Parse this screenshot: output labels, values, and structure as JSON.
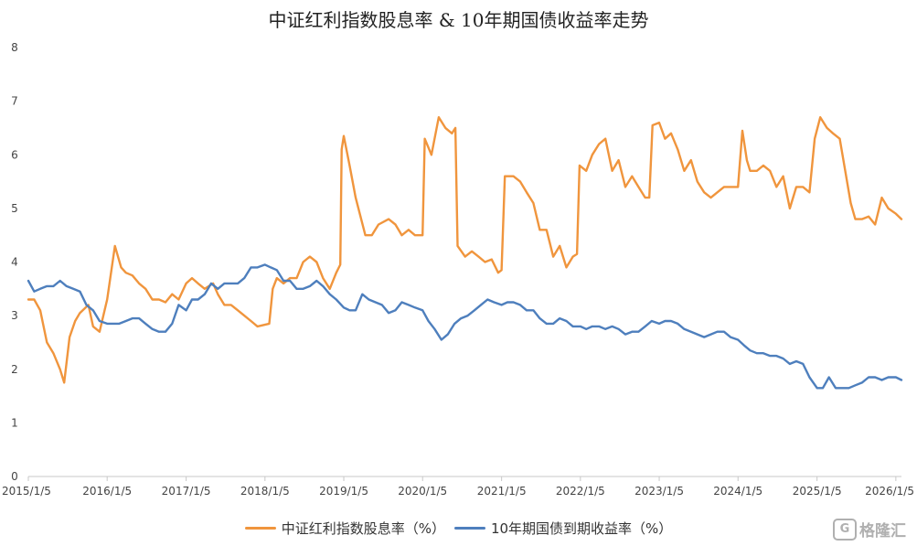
{
  "chart_data": {
    "type": "line",
    "title": "中证红利指数股息率 & 10年期国债收益率走势",
    "xlabel": "",
    "ylabel": "",
    "ylim": [
      0,
      8
    ],
    "yticks": [
      0,
      1,
      2,
      3,
      4,
      5,
      6,
      7,
      8
    ],
    "xlim": [
      "2015-01-05",
      "2026-01-31"
    ],
    "xticks": [
      "2015/1/5",
      "2016/1/5",
      "2017/1/5",
      "2018/1/5",
      "2019/1/5",
      "2020/1/5",
      "2021/1/5",
      "2022/1/5",
      "2023/1/5",
      "2024/1/5",
      "2025/1/5",
      "2026/1/5"
    ],
    "grid": false,
    "legend_position": "bottom",
    "series": [
      {
        "name": "中证红利指数股息率（%）",
        "color": "#f0953d",
        "points": [
          [
            "2015-01-05",
            3.3
          ],
          [
            "2015-02-01",
            3.3
          ],
          [
            "2015-03-01",
            3.1
          ],
          [
            "2015-04-01",
            2.5
          ],
          [
            "2015-05-01",
            2.3
          ],
          [
            "2015-06-01",
            2.0
          ],
          [
            "2015-06-20",
            1.75
          ],
          [
            "2015-07-15",
            2.6
          ],
          [
            "2015-08-10",
            2.9
          ],
          [
            "2015-09-01",
            3.05
          ],
          [
            "2015-10-10",
            3.2
          ],
          [
            "2015-11-01",
            2.8
          ],
          [
            "2015-12-01",
            2.7
          ],
          [
            "2016-01-05",
            3.3
          ],
          [
            "2016-02-10",
            4.3
          ],
          [
            "2016-03-10",
            3.9
          ],
          [
            "2016-04-01",
            3.8
          ],
          [
            "2016-05-01",
            3.75
          ],
          [
            "2016-06-01",
            3.6
          ],
          [
            "2016-07-01",
            3.5
          ],
          [
            "2016-08-01",
            3.3
          ],
          [
            "2016-09-01",
            3.3
          ],
          [
            "2016-10-01",
            3.25
          ],
          [
            "2016-11-01",
            3.4
          ],
          [
            "2016-12-01",
            3.3
          ],
          [
            "2017-01-05",
            3.6
          ],
          [
            "2017-02-01",
            3.7
          ],
          [
            "2017-03-01",
            3.6
          ],
          [
            "2017-04-01",
            3.5
          ],
          [
            "2017-05-10",
            3.6
          ],
          [
            "2017-06-01",
            3.4
          ],
          [
            "2017-07-01",
            3.2
          ],
          [
            "2017-08-01",
            3.2
          ],
          [
            "2017-09-01",
            3.1
          ],
          [
            "2017-10-01",
            3.0
          ],
          [
            "2017-11-01",
            2.9
          ],
          [
            "2017-12-01",
            2.8
          ],
          [
            "2018-01-25",
            2.85
          ],
          [
            "2018-02-10",
            3.5
          ],
          [
            "2018-03-01",
            3.7
          ],
          [
            "2018-04-01",
            3.6
          ],
          [
            "2018-05-01",
            3.7
          ],
          [
            "2018-06-01",
            3.7
          ],
          [
            "2018-07-01",
            4.0
          ],
          [
            "2018-08-01",
            4.1
          ],
          [
            "2018-09-01",
            4.0
          ],
          [
            "2018-10-01",
            3.7
          ],
          [
            "2018-11-01",
            3.5
          ],
          [
            "2018-12-01",
            3.8
          ],
          [
            "2018-12-20",
            3.95
          ],
          [
            "2018-12-26",
            6.1
          ],
          [
            "2019-01-05",
            6.35
          ],
          [
            "2019-02-01",
            5.8
          ],
          [
            "2019-03-01",
            5.2
          ],
          [
            "2019-04-15",
            4.5
          ],
          [
            "2019-05-15",
            4.5
          ],
          [
            "2019-06-15",
            4.7
          ],
          [
            "2019-08-01",
            4.8
          ],
          [
            "2019-09-01",
            4.7
          ],
          [
            "2019-10-01",
            4.5
          ],
          [
            "2019-11-01",
            4.6
          ],
          [
            "2019-12-01",
            4.5
          ],
          [
            "2020-01-05",
            4.5
          ],
          [
            "2020-01-15",
            6.3
          ],
          [
            "2020-02-15",
            6.0
          ],
          [
            "2020-03-20",
            6.7
          ],
          [
            "2020-04-20",
            6.5
          ],
          [
            "2020-05-20",
            6.4
          ],
          [
            "2020-06-05",
            6.5
          ],
          [
            "2020-06-15",
            4.3
          ],
          [
            "2020-07-20",
            4.1
          ],
          [
            "2020-08-20",
            4.2
          ],
          [
            "2020-09-20",
            4.1
          ],
          [
            "2020-10-20",
            4.0
          ],
          [
            "2020-11-20",
            4.05
          ],
          [
            "2020-12-20",
            3.8
          ],
          [
            "2021-01-05",
            3.85
          ],
          [
            "2021-01-20",
            5.6
          ],
          [
            "2021-03-01",
            5.6
          ],
          [
            "2021-04-01",
            5.5
          ],
          [
            "2021-05-01",
            5.3
          ],
          [
            "2021-06-01",
            5.1
          ],
          [
            "2021-07-01",
            4.6
          ],
          [
            "2021-08-01",
            4.6
          ],
          [
            "2021-09-01",
            4.1
          ],
          [
            "2021-10-01",
            4.3
          ],
          [
            "2021-11-01",
            3.9
          ],
          [
            "2021-12-01",
            4.1
          ],
          [
            "2021-12-20",
            4.15
          ],
          [
            "2022-01-01",
            5.8
          ],
          [
            "2022-02-01",
            5.7
          ],
          [
            "2022-03-01",
            6.0
          ],
          [
            "2022-04-01",
            6.2
          ],
          [
            "2022-05-01",
            6.3
          ],
          [
            "2022-06-01",
            5.7
          ],
          [
            "2022-07-01",
            5.9
          ],
          [
            "2022-08-01",
            5.4
          ],
          [
            "2022-09-01",
            5.6
          ],
          [
            "2022-10-01",
            5.4
          ],
          [
            "2022-11-01",
            5.2
          ],
          [
            "2022-11-20",
            5.2
          ],
          [
            "2022-12-05",
            6.55
          ],
          [
            "2023-01-05",
            6.6
          ],
          [
            "2023-02-01",
            6.3
          ],
          [
            "2023-03-01",
            6.4
          ],
          [
            "2023-04-01",
            6.1
          ],
          [
            "2023-05-01",
            5.7
          ],
          [
            "2023-06-01",
            5.9
          ],
          [
            "2023-07-01",
            5.5
          ],
          [
            "2023-08-01",
            5.3
          ],
          [
            "2023-09-01",
            5.2
          ],
          [
            "2023-10-01",
            5.3
          ],
          [
            "2023-11-01",
            5.4
          ],
          [
            "2023-12-01",
            5.4
          ],
          [
            "2024-01-05",
            5.4
          ],
          [
            "2024-01-25",
            6.45
          ],
          [
            "2024-02-15",
            5.9
          ],
          [
            "2024-03-01",
            5.7
          ],
          [
            "2024-04-01",
            5.7
          ],
          [
            "2024-05-01",
            5.8
          ],
          [
            "2024-06-01",
            5.7
          ],
          [
            "2024-07-01",
            5.4
          ],
          [
            "2024-08-01",
            5.6
          ],
          [
            "2024-09-01",
            5.0
          ],
          [
            "2024-10-01",
            5.4
          ],
          [
            "2024-11-01",
            5.4
          ],
          [
            "2024-12-01",
            5.3
          ],
          [
            "2024-12-25",
            6.3
          ],
          [
            "2025-01-20",
            6.7
          ],
          [
            "2025-02-20",
            6.5
          ],
          [
            "2025-03-20",
            6.4
          ],
          [
            "2025-04-20",
            6.3
          ],
          [
            "2025-05-20",
            5.6
          ],
          [
            "2025-06-10",
            5.1
          ],
          [
            "2025-07-01",
            4.8
          ],
          [
            "2025-08-01",
            4.8
          ],
          [
            "2025-09-01",
            4.85
          ],
          [
            "2025-10-01",
            4.7
          ],
          [
            "2025-11-01",
            5.2
          ],
          [
            "2025-12-01",
            5.0
          ],
          [
            "2026-01-05",
            4.9
          ],
          [
            "2026-01-31",
            4.8
          ]
        ]
      },
      {
        "name": "10年期国债到期收益率（%）",
        "color": "#4e7fbd",
        "points": [
          [
            "2015-01-05",
            3.65
          ],
          [
            "2015-02-01",
            3.45
          ],
          [
            "2015-03-01",
            3.5
          ],
          [
            "2015-04-01",
            3.55
          ],
          [
            "2015-05-01",
            3.55
          ],
          [
            "2015-06-01",
            3.65
          ],
          [
            "2015-07-01",
            3.55
          ],
          [
            "2015-08-01",
            3.5
          ],
          [
            "2015-09-01",
            3.45
          ],
          [
            "2015-10-01",
            3.2
          ],
          [
            "2015-11-01",
            3.1
          ],
          [
            "2015-12-01",
            2.9
          ],
          [
            "2016-01-05",
            2.85
          ],
          [
            "2016-02-01",
            2.85
          ],
          [
            "2016-03-01",
            2.85
          ],
          [
            "2016-04-01",
            2.9
          ],
          [
            "2016-05-01",
            2.95
          ],
          [
            "2016-06-01",
            2.95
          ],
          [
            "2016-07-01",
            2.85
          ],
          [
            "2016-08-01",
            2.75
          ],
          [
            "2016-09-01",
            2.7
          ],
          [
            "2016-10-01",
            2.7
          ],
          [
            "2016-11-01",
            2.85
          ],
          [
            "2016-12-01",
            3.2
          ],
          [
            "2017-01-05",
            3.1
          ],
          [
            "2017-02-01",
            3.3
          ],
          [
            "2017-03-01",
            3.3
          ],
          [
            "2017-04-01",
            3.4
          ],
          [
            "2017-05-01",
            3.6
          ],
          [
            "2017-06-01",
            3.5
          ],
          [
            "2017-07-01",
            3.6
          ],
          [
            "2017-08-01",
            3.6
          ],
          [
            "2017-09-01",
            3.6
          ],
          [
            "2017-10-01",
            3.7
          ],
          [
            "2017-11-01",
            3.9
          ],
          [
            "2017-12-01",
            3.9
          ],
          [
            "2018-01-05",
            3.95
          ],
          [
            "2018-02-01",
            3.9
          ],
          [
            "2018-03-01",
            3.85
          ],
          [
            "2018-04-01",
            3.65
          ],
          [
            "2018-05-01",
            3.65
          ],
          [
            "2018-06-01",
            3.5
          ],
          [
            "2018-07-01",
            3.5
          ],
          [
            "2018-08-01",
            3.55
          ],
          [
            "2018-09-01",
            3.65
          ],
          [
            "2018-10-01",
            3.55
          ],
          [
            "2018-11-01",
            3.4
          ],
          [
            "2018-12-01",
            3.3
          ],
          [
            "2019-01-05",
            3.15
          ],
          [
            "2019-02-01",
            3.1
          ],
          [
            "2019-03-01",
            3.1
          ],
          [
            "2019-04-01",
            3.4
          ],
          [
            "2019-05-01",
            3.3
          ],
          [
            "2019-06-01",
            3.25
          ],
          [
            "2019-07-01",
            3.2
          ],
          [
            "2019-08-01",
            3.05
          ],
          [
            "2019-09-01",
            3.1
          ],
          [
            "2019-10-01",
            3.25
          ],
          [
            "2019-11-01",
            3.2
          ],
          [
            "2019-12-01",
            3.15
          ],
          [
            "2020-01-05",
            3.1
          ],
          [
            "2020-02-01",
            2.9
          ],
          [
            "2020-03-01",
            2.75
          ],
          [
            "2020-04-01",
            2.55
          ],
          [
            "2020-05-01",
            2.65
          ],
          [
            "2020-06-01",
            2.85
          ],
          [
            "2020-07-01",
            2.95
          ],
          [
            "2020-08-01",
            3.0
          ],
          [
            "2020-09-01",
            3.1
          ],
          [
            "2020-10-01",
            3.2
          ],
          [
            "2020-11-01",
            3.3
          ],
          [
            "2020-12-01",
            3.25
          ],
          [
            "2021-01-05",
            3.2
          ],
          [
            "2021-02-01",
            3.25
          ],
          [
            "2021-03-01",
            3.25
          ],
          [
            "2021-04-01",
            3.2
          ],
          [
            "2021-05-01",
            3.1
          ],
          [
            "2021-06-01",
            3.1
          ],
          [
            "2021-07-01",
            2.95
          ],
          [
            "2021-08-01",
            2.85
          ],
          [
            "2021-09-01",
            2.85
          ],
          [
            "2021-10-01",
            2.95
          ],
          [
            "2021-11-01",
            2.9
          ],
          [
            "2021-12-01",
            2.8
          ],
          [
            "2022-01-05",
            2.8
          ],
          [
            "2022-02-01",
            2.75
          ],
          [
            "2022-03-01",
            2.8
          ],
          [
            "2022-04-01",
            2.8
          ],
          [
            "2022-05-01",
            2.75
          ],
          [
            "2022-06-01",
            2.8
          ],
          [
            "2022-07-01",
            2.75
          ],
          [
            "2022-08-01",
            2.65
          ],
          [
            "2022-09-01",
            2.7
          ],
          [
            "2022-10-01",
            2.7
          ],
          [
            "2022-11-01",
            2.8
          ],
          [
            "2022-12-01",
            2.9
          ],
          [
            "2023-01-05",
            2.85
          ],
          [
            "2023-02-01",
            2.9
          ],
          [
            "2023-03-01",
            2.9
          ],
          [
            "2023-04-01",
            2.85
          ],
          [
            "2023-05-01",
            2.75
          ],
          [
            "2023-06-01",
            2.7
          ],
          [
            "2023-07-01",
            2.65
          ],
          [
            "2023-08-01",
            2.6
          ],
          [
            "2023-09-01",
            2.65
          ],
          [
            "2023-10-01",
            2.7
          ],
          [
            "2023-11-01",
            2.7
          ],
          [
            "2023-12-01",
            2.6
          ],
          [
            "2024-01-05",
            2.55
          ],
          [
            "2024-02-01",
            2.45
          ],
          [
            "2024-03-01",
            2.35
          ],
          [
            "2024-04-01",
            2.3
          ],
          [
            "2024-05-01",
            2.3
          ],
          [
            "2024-06-01",
            2.25
          ],
          [
            "2024-07-01",
            2.25
          ],
          [
            "2024-08-01",
            2.2
          ],
          [
            "2024-09-01",
            2.1
          ],
          [
            "2024-10-01",
            2.15
          ],
          [
            "2024-11-01",
            2.1
          ],
          [
            "2024-12-01",
            1.85
          ],
          [
            "2025-01-05",
            1.65
          ],
          [
            "2025-02-01",
            1.65
          ],
          [
            "2025-03-01",
            1.85
          ],
          [
            "2025-04-01",
            1.65
          ],
          [
            "2025-05-01",
            1.65
          ],
          [
            "2025-06-01",
            1.65
          ],
          [
            "2025-07-01",
            1.7
          ],
          [
            "2025-08-01",
            1.75
          ],
          [
            "2025-09-01",
            1.85
          ],
          [
            "2025-10-01",
            1.85
          ],
          [
            "2025-11-01",
            1.8
          ],
          [
            "2025-12-01",
            1.85
          ],
          [
            "2026-01-05",
            1.85
          ],
          [
            "2026-01-31",
            1.8
          ]
        ]
      }
    ]
  },
  "watermark": {
    "logo_glyph": "G",
    "text": "格隆汇"
  }
}
